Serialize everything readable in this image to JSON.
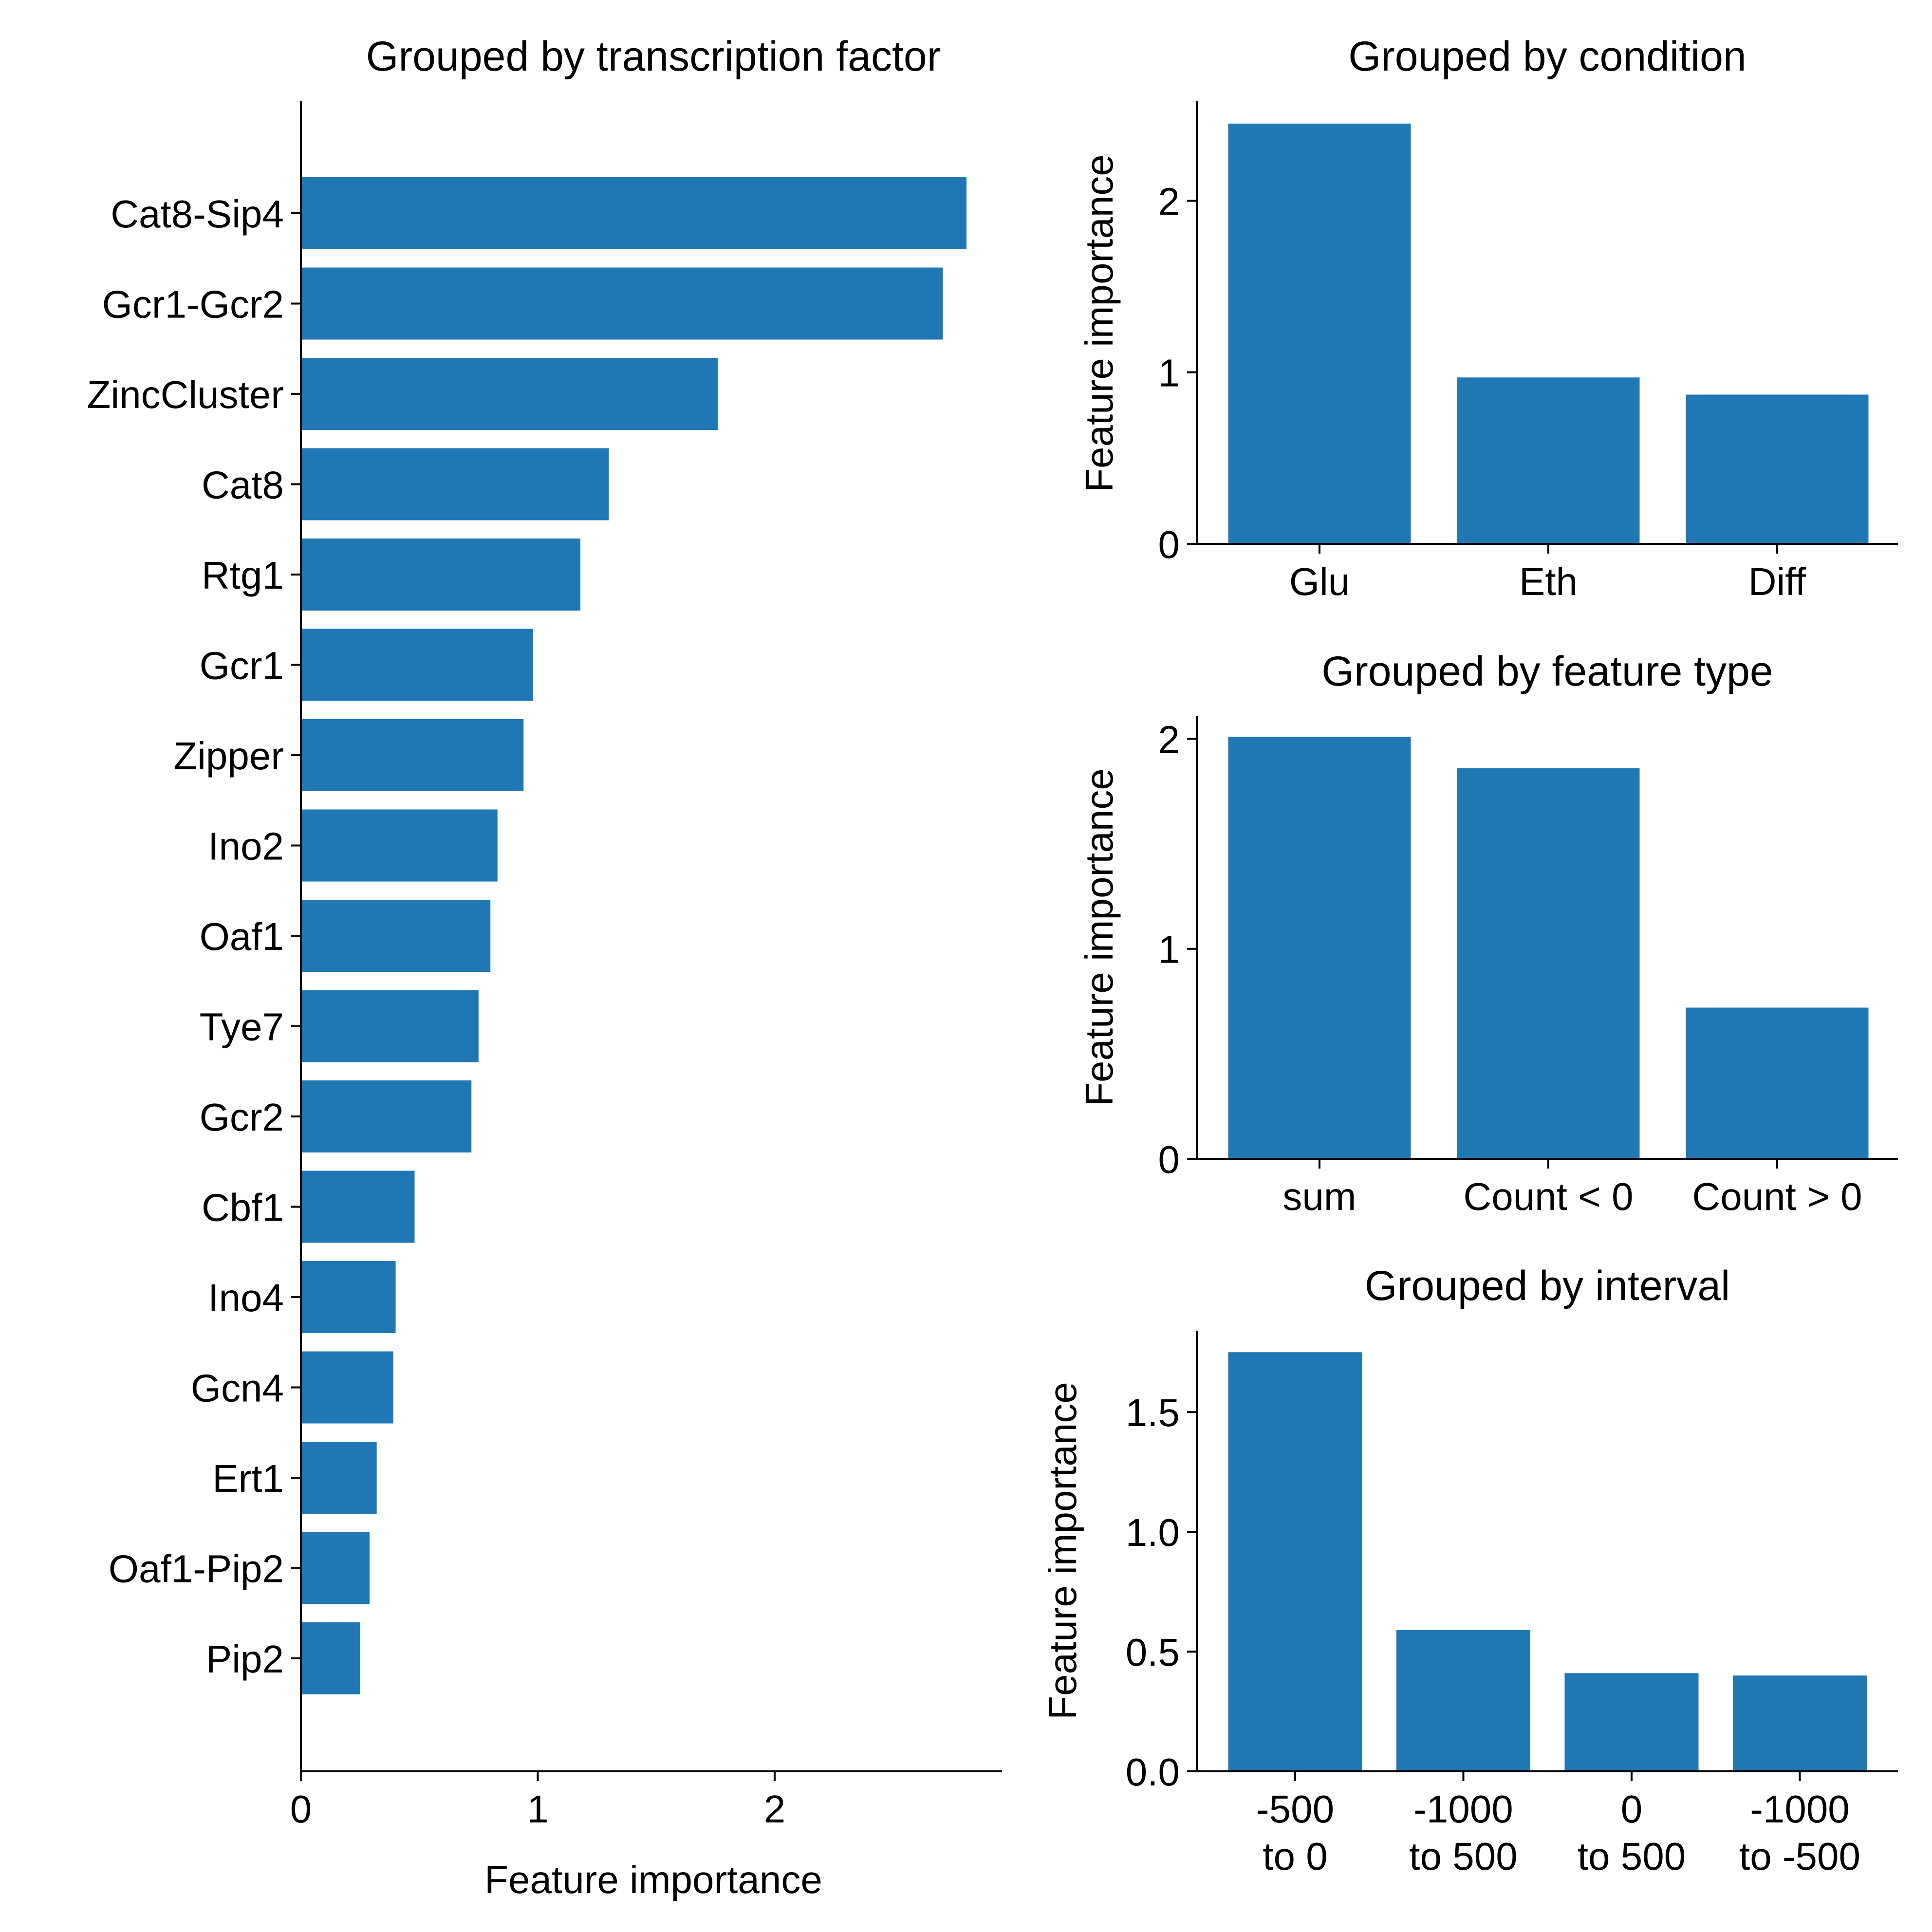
{
  "colors": {
    "bar": "#1f77b4",
    "axis": "#000000",
    "background": "#ffffff"
  },
  "chart_data": [
    {
      "type": "bar",
      "orientation": "horizontal",
      "title": "Grouped by transcription factor",
      "xlabel": "Feature importance",
      "ylabel": "",
      "categories": [
        "Cat8-Sip4",
        "Gcr1-Gcr2",
        "ZincCluster",
        "Cat8",
        "Rtg1",
        "Gcr1",
        "Zipper",
        "Ino2",
        "Oaf1",
        "Tye7",
        "Gcr2",
        "Cbf1",
        "Ino4",
        "Gcn4",
        "Ert1",
        "Oaf1-Pip2",
        "Pip2"
      ],
      "values": [
        2.81,
        2.71,
        1.76,
        1.3,
        1.18,
        0.98,
        0.94,
        0.83,
        0.8,
        0.75,
        0.72,
        0.48,
        0.4,
        0.39,
        0.32,
        0.29,
        0.25
      ],
      "xlim": [
        0,
        2.96
      ],
      "xticks": [
        0,
        1,
        2
      ],
      "xtick_labels": [
        "0",
        "1",
        "2"
      ],
      "grid": false
    },
    {
      "type": "bar",
      "title": "Grouped by condition",
      "xlabel": "",
      "ylabel": "Feature importance",
      "categories": [
        "Glu",
        "Eth",
        "Diff"
      ],
      "values": [
        2.45,
        0.97,
        0.87
      ],
      "ylim": [
        0,
        2.58
      ],
      "yticks": [
        0,
        1,
        2
      ],
      "ytick_labels": [
        "0",
        "1",
        "2"
      ],
      "grid": false
    },
    {
      "type": "bar",
      "title": "Grouped by feature type",
      "xlabel": "",
      "ylabel": "Feature importance",
      "categories": [
        "sum",
        "Count < 0",
        "Count > 0"
      ],
      "values": [
        2.01,
        1.86,
        0.72
      ],
      "ylim": [
        0,
        2.11
      ],
      "yticks": [
        0,
        1,
        2
      ],
      "ytick_labels": [
        "0",
        "1",
        "2"
      ],
      "grid": false
    },
    {
      "type": "bar",
      "title": "Grouped by interval",
      "xlabel": "",
      "ylabel": "Feature importance",
      "categories": [
        "-500\nto 0",
        "-1000\nto 500",
        "0\nto 500",
        "-1000\nto -500"
      ],
      "values": [
        1.75,
        0.59,
        0.41,
        0.4
      ],
      "ylim": [
        0,
        1.84
      ],
      "yticks": [
        0,
        0.5,
        1.0,
        1.5
      ],
      "ytick_labels": [
        "0.0",
        "0.5",
        "1.0",
        "1.5"
      ],
      "grid": false
    }
  ]
}
